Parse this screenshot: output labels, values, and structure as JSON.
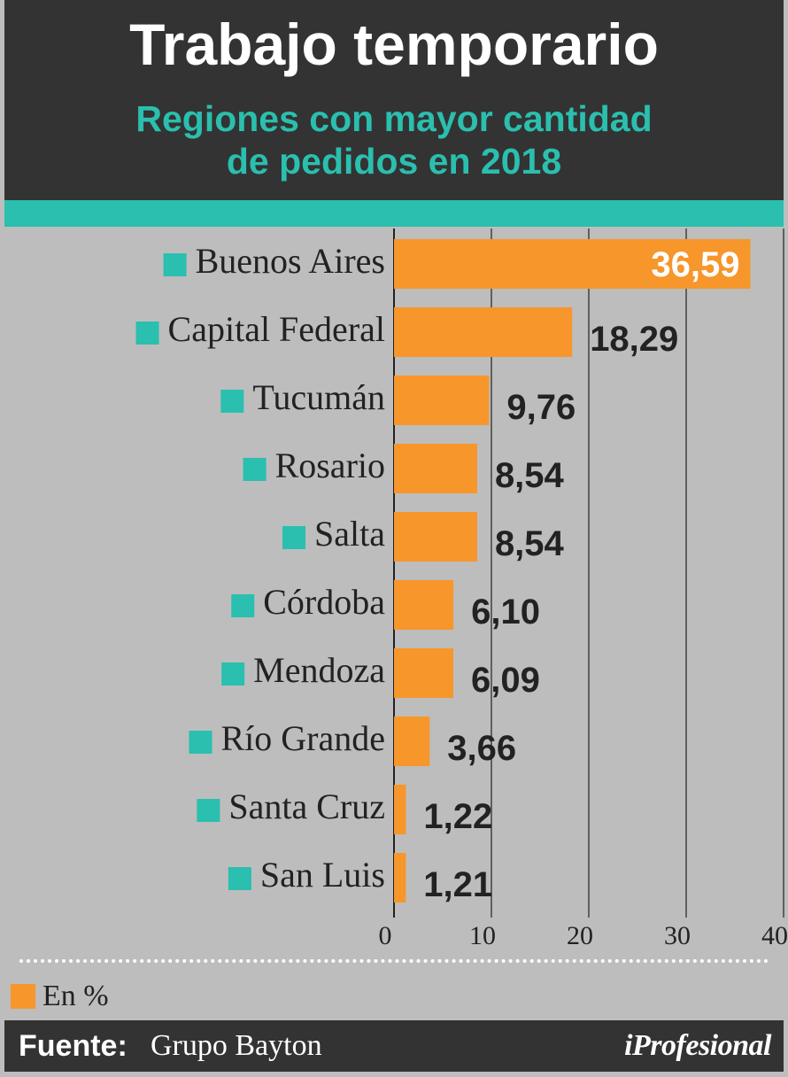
{
  "header": {
    "title": "Trabajo temporario",
    "subtitle_line1": "Regiones con mayor cantidad",
    "subtitle_line2": "de pedidos en 2018"
  },
  "colors": {
    "bar": "#f7962a",
    "marker": "#2abfae",
    "header_bg": "#333333",
    "panel_bg": "#bdbdbd",
    "value_inside": "#ffffff",
    "value_outside": "#222222"
  },
  "chart_data": {
    "type": "bar",
    "orientation": "horizontal",
    "categories": [
      "Buenos Aires",
      "Capital Federal",
      "Tucumán",
      "Rosario",
      "Salta",
      "Córdoba",
      "Mendoza",
      "Río Grande",
      "Santa Cruz",
      "San Luis"
    ],
    "values": [
      36.59,
      18.29,
      9.76,
      8.54,
      8.54,
      6.1,
      6.09,
      3.66,
      1.22,
      1.21
    ],
    "value_labels": [
      "36,59",
      "18,29",
      "9,76",
      "8,54",
      "8,54",
      "6,10",
      "6,09",
      "3,66",
      "1,22",
      "1,21"
    ],
    "xlim": [
      0,
      40
    ],
    "x_ticks": [
      "0",
      "10",
      "20",
      "30",
      "40"
    ],
    "grid": true,
    "legend": "bottom-left"
  },
  "legend": {
    "label": "En %"
  },
  "footer": {
    "source_label": "Fuente:",
    "source_name": "Grupo Bayton",
    "brand": "iProfesional"
  }
}
